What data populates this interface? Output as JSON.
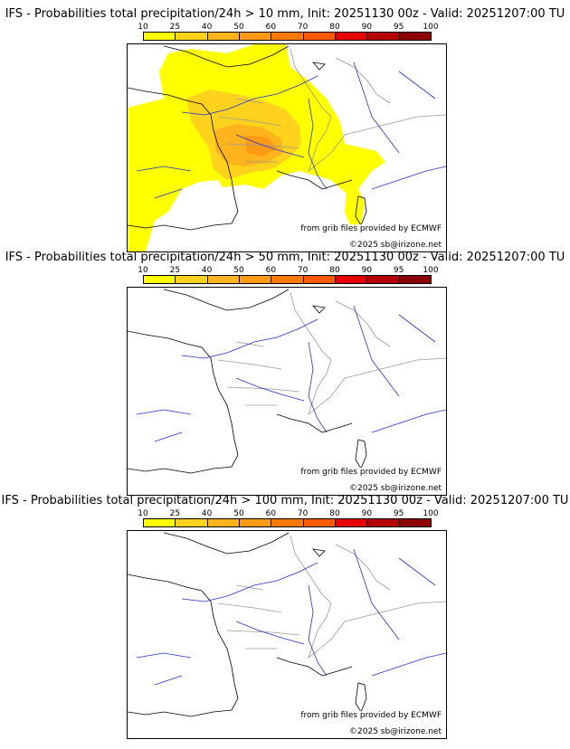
{
  "colorbar": {
    "ticks": [
      "10",
      "25",
      "40",
      "50",
      "60",
      "70",
      "80",
      "90",
      "95",
      "100"
    ],
    "colors": [
      "#ffff00",
      "#ffd21e",
      "#ffb41e",
      "#ff9a14",
      "#ff7800",
      "#ff5a00",
      "#e60000",
      "#b40000",
      "#8c0000"
    ]
  },
  "source_credit": "from grib files provided by ECMWF",
  "copyright": "©2025 sb@irizone.net",
  "panels": [
    {
      "title": "IFS - Probabilities total precipitation/24h > 10 mm, Init: 20251130 00z - Valid: 20251207:00 TU",
      "threshold_mm": 10
    },
    {
      "title": "IFS - Probabilities total precipitation/24h > 50 mm, Init: 20251130 00z - Valid: 20251207:00 TU",
      "threshold_mm": 50
    },
    {
      "title": "IFS - Probabilities total precipitation/24h > 100 mm, Init: 20251130 00z - Valid: 20251207:00 TU",
      "threshold_mm": 100
    }
  ],
  "map_colors": {
    "coast": "#000000",
    "rivers": "#2233cc",
    "borders": "#999999",
    "prob_10": "#ffff00",
    "prob_25": "#ffd21e",
    "prob_40": "#ffb41e",
    "prob_50": "#ff9a14",
    "prob_60": "#ff7800"
  }
}
